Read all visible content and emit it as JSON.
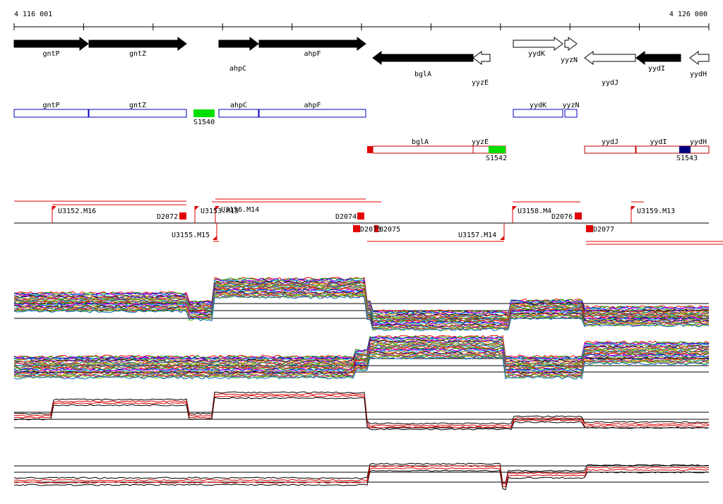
{
  "coordinates": {
    "start": "4 116 001",
    "end": "4 126 000"
  },
  "genes": [
    {
      "name": "gntP",
      "from": 20,
      "to": 125,
      "dir": "+",
      "fill": "black"
    },
    {
      "name": "gntZ",
      "from": 126,
      "to": 264,
      "dir": "+",
      "fill": "black"
    },
    {
      "name": "ahpC",
      "from": 310,
      "to": 366,
      "dir": "+",
      "fill": "black"
    },
    {
      "name": "ahpF",
      "from": 367,
      "to": 518,
      "dir": "+",
      "fill": "black"
    },
    {
      "name": "bglA",
      "from": 528,
      "to": 670,
      "dir": "-",
      "fill": "black"
    },
    {
      "name": "yyzE",
      "from": 670,
      "to": 694,
      "dir": "-",
      "fill": "white"
    },
    {
      "name": "yydK",
      "from": 727,
      "to": 797,
      "dir": "+",
      "fill": "white"
    },
    {
      "name": "yyzN",
      "from": 800,
      "to": 817,
      "dir": "+",
      "fill": "white"
    },
    {
      "name": "yydJ",
      "from": 828,
      "to": 900,
      "dir": "-",
      "fill": "white"
    },
    {
      "name": "yydI",
      "from": 901,
      "to": 964,
      "dir": "-",
      "fill": "black"
    },
    {
      "name": "yydH",
      "from": 977,
      "to": 1004,
      "dir": "-",
      "fill": "white"
    }
  ],
  "blue_track": {
    "genes": [
      {
        "name": "gntP",
        "from": 20,
        "to": 125
      },
      {
        "name": "gntZ",
        "from": 126,
        "to": 264
      },
      {
        "name": "ahpC",
        "from": 310,
        "to": 366
      },
      {
        "name": "ahpF",
        "from": 367,
        "to": 518
      },
      {
        "name": "yydK",
        "from": 727,
        "to": 797
      },
      {
        "name": "yyzN",
        "from": 800,
        "to": 817
      }
    ],
    "features": [
      {
        "name": "S1540",
        "from": 274,
        "to": 304,
        "color": "#00e000"
      }
    ]
  },
  "red_track": {
    "genes": [
      {
        "name": "bglA",
        "from": 520,
        "to": 670
      },
      {
        "name": "yyzE",
        "from": 670,
        "to": 716
      },
      {
        "name": "yydJ",
        "from": 828,
        "to": 900
      },
      {
        "name": "yydI",
        "from": 901,
        "to": 964
      },
      {
        "name": "yydH",
        "from": 964,
        "to": 1004
      }
    ],
    "features": [
      {
        "name": "S1542",
        "from": 692,
        "to": 716,
        "color": "#00e000"
      },
      {
        "name": "S1543",
        "from": 962,
        "to": 978,
        "color": "#000080"
      }
    ]
  },
  "transcript_labels": [
    "U3152.M16",
    "D2072",
    "U3153.M15",
    "U3156.M14",
    "U3155.M15",
    "D2074",
    "D2075",
    "B2075",
    "U3157.M14",
    "U3158.M4",
    "D2076",
    "D2077",
    "U3159.M13"
  ],
  "colors": {
    "gene_outline_blue": "#0000c0",
    "gene_outline_red": "#c00000",
    "transcript_red": "#e00000",
    "feature_green": "#00e000",
    "feature_navy": "#000080"
  }
}
